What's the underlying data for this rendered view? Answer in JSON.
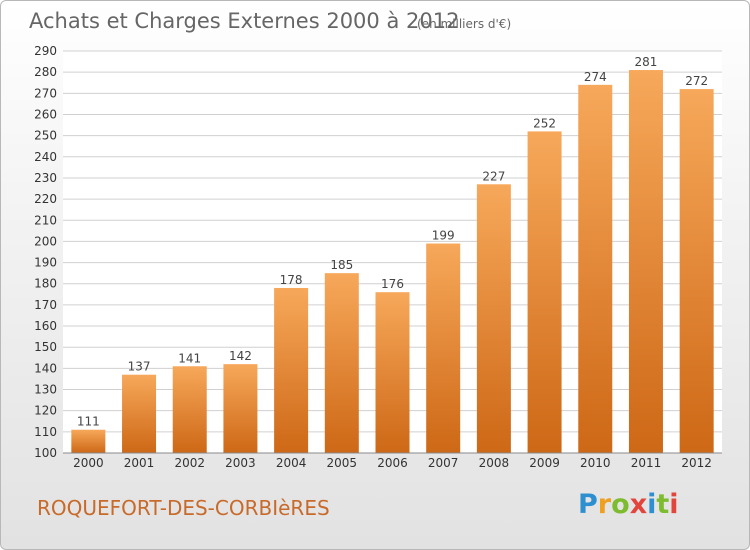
{
  "title": "Achats et Charges Externes 2000 à 2012",
  "subtitle": "(en milliers d'€)",
  "commune": "ROQUEFORT-DES-CORBIèRES",
  "brand": "Proxiti",
  "colors": {
    "bar_light": "#f7a85a",
    "bar_dark": "#cd6816",
    "grid": "#d0d0d0",
    "commune_text": "#c86a2a"
  },
  "chart_data": {
    "type": "bar",
    "categories": [
      "2000",
      "2001",
      "2002",
      "2003",
      "2004",
      "2005",
      "2006",
      "2007",
      "2008",
      "2009",
      "2010",
      "2011",
      "2012"
    ],
    "values": [
      111,
      137,
      141,
      142,
      178,
      185,
      176,
      199,
      227,
      252,
      274,
      281,
      272
    ],
    "ylim": [
      100,
      290
    ],
    "yticks": [
      100,
      110,
      120,
      130,
      140,
      150,
      160,
      170,
      180,
      190,
      200,
      210,
      220,
      230,
      240,
      250,
      260,
      270,
      280,
      290
    ],
    "grid": true,
    "data_labels": true
  }
}
